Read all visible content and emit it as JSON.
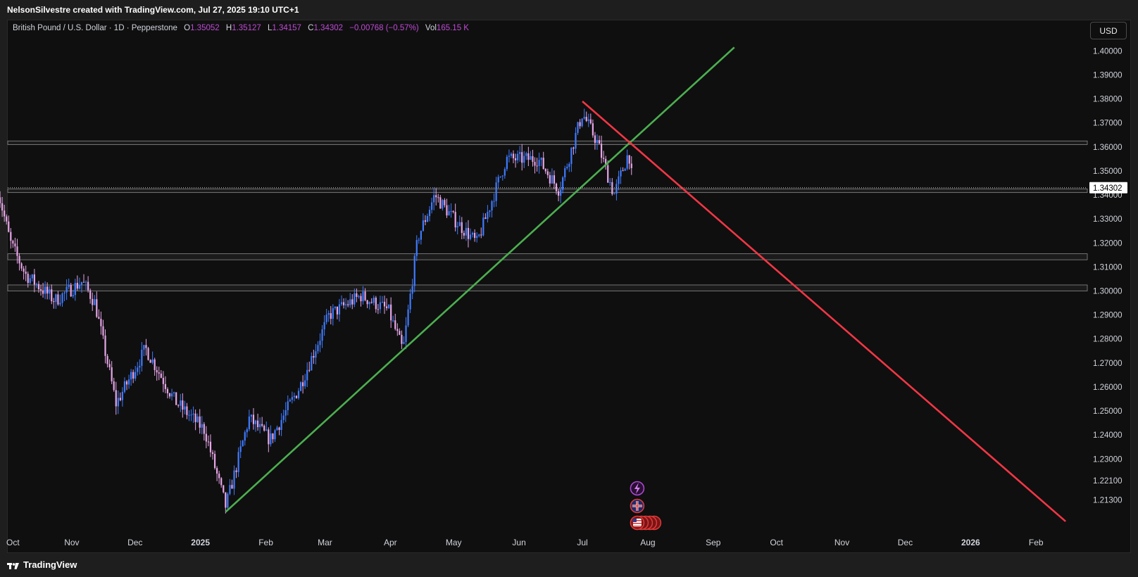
{
  "header": {
    "attribution": "NelsonSilvestre created with TradingView.com, Jul 27, 2025 19:10 UTC+1"
  },
  "legend": {
    "symbol": "British Pound / U.S. Dollar · 1D · Pepperstone",
    "open_label": "O",
    "open": "1.35052",
    "high_label": "H",
    "high": "1.35127",
    "low_label": "L",
    "low": "1.34157",
    "close_label": "C",
    "close": "1.34302",
    "change": "−0.00768 (−0.57%)",
    "vol_label": "Vol",
    "vol": "165.15 K"
  },
  "currency_button": "USD",
  "last_price_tag": "1.34302",
  "footer": {
    "brand": "TradingView",
    "logo": "tradingview-logo-icon"
  },
  "colors": {
    "background": "#0f0f0f",
    "up_candle": "#3f7bff",
    "down_candle": "#e7a6e8",
    "support_trendline": "#4caf50",
    "resistance_trendline": "#f23645",
    "zone_border": "#8a8a8a",
    "legend_values": "#c04ad6"
  },
  "event_icons": [
    "lightning-event-icon",
    "uk-flag-event-icon",
    "us-flag-event-icon"
  ],
  "chart_data": {
    "type": "candlestick",
    "title": "British Pound / U.S. Dollar · 1D · Pepperstone",
    "x_ticks": [
      "Oct",
      "Nov",
      "Dec",
      "2025",
      "Feb",
      "Mar",
      "Apr",
      "May",
      "Jun",
      "Jul",
      "Aug",
      "Sep",
      "Oct",
      "Nov",
      "Dec",
      "2026",
      "Feb"
    ],
    "x_ticks_bold": [
      "2025",
      "2026"
    ],
    "y_ticks": [
      "1.40000",
      "1.39000",
      "1.38000",
      "1.37000",
      "1.36000",
      "1.35000",
      "1.34000",
      "1.33000",
      "1.32000",
      "1.31000",
      "1.30000",
      "1.29000",
      "1.28000",
      "1.27000",
      "1.26000",
      "1.25000",
      "1.24000",
      "1.23000",
      "1.22100",
      "1.21300"
    ],
    "price_path": [
      {
        "date": "2024-09-27",
        "price": 1.342
      },
      {
        "date": "2024-10-03",
        "price": 1.32
      },
      {
        "date": "2024-10-10",
        "price": 1.307
      },
      {
        "date": "2024-10-24",
        "price": 1.296
      },
      {
        "date": "2024-11-06",
        "price": 1.304
      },
      {
        "date": "2024-11-12",
        "price": 1.295
      },
      {
        "date": "2024-11-22",
        "price": 1.253
      },
      {
        "date": "2024-12-06",
        "price": 1.276
      },
      {
        "date": "2024-12-20",
        "price": 1.254
      },
      {
        "date": "2025-01-03",
        "price": 1.242
      },
      {
        "date": "2025-01-13",
        "price": 1.21
      },
      {
        "date": "2025-01-24",
        "price": 1.247
      },
      {
        "date": "2025-02-03",
        "price": 1.238
      },
      {
        "date": "2025-02-17",
        "price": 1.26
      },
      {
        "date": "2025-03-03",
        "price": 1.29
      },
      {
        "date": "2025-03-18",
        "price": 1.298
      },
      {
        "date": "2025-03-31",
        "price": 1.292
      },
      {
        "date": "2025-04-07",
        "price": 1.275
      },
      {
        "date": "2025-04-14",
        "price": 1.322
      },
      {
        "date": "2025-04-22",
        "price": 1.34
      },
      {
        "date": "2025-05-01",
        "price": 1.33
      },
      {
        "date": "2025-05-12",
        "price": 1.32
      },
      {
        "date": "2025-05-26",
        "price": 1.355
      },
      {
        "date": "2025-06-10",
        "price": 1.355
      },
      {
        "date": "2025-06-20",
        "price": 1.342
      },
      {
        "date": "2025-07-01",
        "price": 1.374
      },
      {
        "date": "2025-07-08",
        "price": 1.362
      },
      {
        "date": "2025-07-16",
        "price": 1.34
      },
      {
        "date": "2025-07-23",
        "price": 1.358
      },
      {
        "date": "2025-07-25",
        "price": 1.343
      }
    ],
    "candle_period": "1D",
    "horizontal_zones": [
      {
        "from": 1.361,
        "to": 1.3625
      },
      {
        "from": 1.341,
        "to": 1.3425
      },
      {
        "from": 1.313,
        "to": 1.3155
      },
      {
        "from": 1.3,
        "to": 1.3025
      }
    ],
    "trendlines": [
      {
        "name": "support",
        "from": {
          "date": "2025-01-13",
          "price": 1.208
        },
        "to": {
          "date": "2025-09-11",
          "price": 1.4015
        }
      },
      {
        "name": "resistance",
        "from": {
          "date": "2025-07-01",
          "price": 1.379
        },
        "to": {
          "date": "2026-02-15",
          "price": 1.204
        }
      }
    ],
    "last_price": 1.34302,
    "last_price_style": "dotted",
    "grid": false,
    "y_axis_side": "right"
  }
}
